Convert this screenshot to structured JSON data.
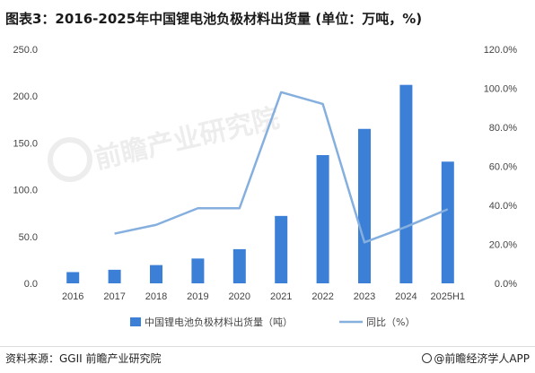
{
  "title": "图表3：2016-2025年中国锂电池负极材料出货量 (单位：万吨，%)",
  "watermark": "前瞻产业研究院",
  "footer": {
    "source": "资料来源：GGII 前瞻产业研究院",
    "brand": "@前瞻经济学人APP"
  },
  "colors": {
    "bar": "#3c7fd6",
    "line": "#84afde",
    "axis_text": "#444444"
  },
  "chart_data": {
    "type": "bar",
    "categories": [
      "2016",
      "2017",
      "2018",
      "2019",
      "2020",
      "2021",
      "2022",
      "2023",
      "2024",
      "2025H1"
    ],
    "left_axis": {
      "ylim": [
        0,
        250
      ],
      "ticks": [
        "0.0",
        "50.0",
        "100.0",
        "150.0",
        "200.0",
        "250.0"
      ]
    },
    "right_axis": {
      "ylim": [
        0,
        120
      ],
      "ticks": [
        "0.0%",
        "20.0%",
        "40.0%",
        "60.0%",
        "80.0%",
        "100.0%",
        "120.0%"
      ]
    },
    "series": [
      {
        "name": "中国锂电池负极材料出货量（吨）",
        "type": "bar",
        "axis": "left",
        "values": [
          12,
          14.5,
          19.5,
          26.5,
          36.5,
          72,
          137,
          165,
          212,
          130
        ]
      },
      {
        "name": "同比（%）",
        "type": "line",
        "axis": "right",
        "values": [
          null,
          25.5,
          30,
          38.5,
          38.5,
          98,
          92,
          21,
          29,
          38
        ]
      }
    ],
    "legend_position": "bottom",
    "grid": false
  }
}
